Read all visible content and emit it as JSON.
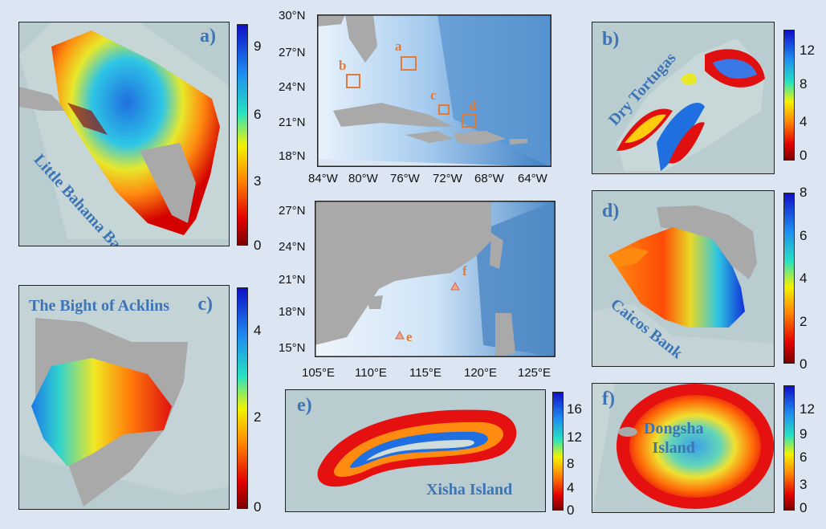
{
  "panels": {
    "a": {
      "label": "a)",
      "region": "Little Bahama Bank",
      "ticks": [
        "9",
        "6",
        "3",
        "0"
      ]
    },
    "b": {
      "label": "b)",
      "region": "Dry Tortugas",
      "ticks": [
        "12",
        "8",
        "4",
        "0"
      ]
    },
    "c": {
      "label": "c)",
      "region": "The Bight of Acklins",
      "ticks": [
        "4",
        "2",
        "0"
      ]
    },
    "d": {
      "label": "d)",
      "region": "Caicos Bank",
      "ticks": [
        "8",
        "6",
        "4",
        "2",
        "0"
      ]
    },
    "e": {
      "label": "e)",
      "region": "Xisha Island",
      "ticks": [
        "16",
        "12",
        "8",
        "4",
        "0"
      ]
    },
    "f": {
      "label": "f)",
      "region": "Dongsha\nIsland",
      "ticks": [
        "12",
        "9",
        "6",
        "3",
        "0"
      ]
    }
  },
  "map_caribbean": {
    "lat_labels": [
      "30°N",
      "27°N",
      "24°N",
      "21°N",
      "18°N"
    ],
    "lon_labels": [
      "84°W",
      "80°W",
      "76°W",
      "72°W",
      "68°W",
      "64°W"
    ],
    "markers": [
      "a",
      "b",
      "c",
      "d"
    ]
  },
  "map_scs": {
    "lat_labels": [
      "27°N",
      "24°N",
      "21°N",
      "18°N",
      "15°N"
    ],
    "lon_labels": [
      "105°E",
      "110°E",
      "115°E",
      "120°E",
      "125°E"
    ],
    "markers": [
      "f",
      "e"
    ]
  },
  "colors": {
    "label": "#3d74b5",
    "marker": "#e07a38",
    "ocean_bg": "#b9cdd0",
    "land": "#a9a9a9"
  }
}
